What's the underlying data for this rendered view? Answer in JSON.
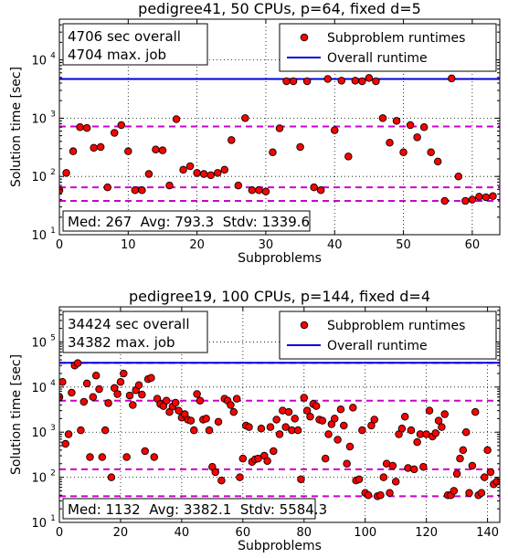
{
  "charts": [
    {
      "type": "scatter",
      "title": "pedigree41, 50 CPUs, p=64, fixed d=5",
      "xlabel": "Subproblems",
      "ylabel": "Solution time [sec]",
      "xlim": [
        0,
        64
      ],
      "ylim": [
        10,
        50000
      ],
      "yscale": "log",
      "xticks": [
        0,
        10,
        20,
        30,
        40,
        50,
        60
      ],
      "yticks": [
        10,
        100,
        1000,
        10000
      ],
      "yticklabels": [
        [
          "10",
          "1"
        ],
        [
          "10",
          "2"
        ],
        [
          "10",
          "3"
        ],
        [
          "10",
          "4"
        ]
      ],
      "grid": true,
      "legend_position": "top-right",
      "legend": {
        "series_label": "Subproblem runtimes",
        "line_label": "Overall runtime"
      },
      "info_box": {
        "line1": "4706 sec overall",
        "line2": "4704 max. job"
      },
      "stats_box": "Med: 267  Avg: 793.3  Stdv: 1339.6",
      "overall_runtime": 4706,
      "magenta_lines": [
        4704,
        720,
        65,
        38
      ],
      "series": [
        {
          "name": "Subproblem runtimes",
          "color": "#ff0000",
          "x": [
            0,
            1,
            2,
            3,
            4,
            5,
            6,
            7,
            8,
            9,
            10,
            11,
            12,
            13,
            14,
            15,
            16,
            17,
            18,
            19,
            20,
            21,
            22,
            23,
            24,
            25,
            26,
            27,
            28,
            29,
            30,
            31,
            32,
            33,
            34,
            35,
            36,
            37,
            38,
            39,
            40,
            41,
            42,
            43,
            44,
            45,
            46,
            47,
            48,
            49,
            50,
            51,
            52,
            53,
            54,
            55,
            56,
            57,
            58,
            59,
            60,
            61,
            62,
            63
          ],
          "y": [
            58,
            115,
            270,
            700,
            680,
            310,
            320,
            65,
            560,
            760,
            270,
            58,
            58,
            110,
            290,
            280,
            70,
            960,
            130,
            150,
            115,
            110,
            105,
            115,
            130,
            420,
            70,
            1000,
            58,
            58,
            55,
            260,
            670,
            4300,
            4300,
            320,
            4300,
            65,
            58,
            4700,
            620,
            4400,
            220,
            4400,
            4300,
            4900,
            4300,
            1000,
            380,
            900,
            260,
            760,
            470,
            700,
            260,
            180,
            38,
            4800,
            100,
            38,
            40,
            45,
            44,
            46
          ]
        }
      ]
    },
    {
      "type": "scatter",
      "title": "pedigree19, 100 CPUs, p=144, fixed d=4",
      "xlabel": "Subproblems",
      "ylabel": "Solution time [sec]",
      "xlim": [
        0,
        144
      ],
      "ylim": [
        10,
        600000
      ],
      "yscale": "log",
      "xticks": [
        0,
        20,
        40,
        60,
        80,
        100,
        120,
        140
      ],
      "yticks": [
        10,
        100,
        1000,
        10000,
        100000
      ],
      "yticklabels": [
        [
          "10",
          "1"
        ],
        [
          "10",
          "2"
        ],
        [
          "10",
          "3"
        ],
        [
          "10",
          "4"
        ],
        [
          "10",
          "5"
        ]
      ],
      "grid": true,
      "legend_position": "top-right",
      "legend": {
        "series_label": "Subproblem runtimes",
        "line_label": "Overall runtime"
      },
      "info_box": {
        "line1": "34424 sec overall",
        "line2": "34382 max. job"
      },
      "stats_box": "Med: 1132  Avg: 3382.1  Stdv: 5584.3",
      "overall_runtime": 34424,
      "magenta_lines": [
        34382,
        5000,
        150,
        38
      ],
      "series": [
        {
          "name": "Subproblem runtimes",
          "color": "#ff0000",
          "x": [
            0,
            1,
            2,
            3,
            4,
            5,
            6,
            7,
            8,
            9,
            10,
            11,
            12,
            13,
            14,
            15,
            16,
            17,
            18,
            19,
            20,
            21,
            22,
            23,
            24,
            25,
            26,
            27,
            28,
            29,
            30,
            31,
            32,
            33,
            34,
            35,
            36,
            37,
            38,
            39,
            40,
            41,
            42,
            43,
            44,
            45,
            46,
            47,
            48,
            49,
            50,
            51,
            52,
            53,
            54,
            55,
            56,
            57,
            58,
            59,
            60,
            61,
            62,
            63,
            64,
            65,
            66,
            67,
            68,
            69,
            70,
            71,
            72,
            73,
            74,
            75,
            76,
            77,
            78,
            79,
            80,
            81,
            82,
            83,
            84,
            85,
            86,
            87,
            88,
            89,
            90,
            91,
            92,
            93,
            94,
            95,
            96,
            97,
            98,
            99,
            100,
            101,
            102,
            103,
            104,
            105,
            106,
            107,
            108,
            109,
            110,
            111,
            112,
            113,
            114,
            115,
            116,
            117,
            118,
            119,
            120,
            121,
            122,
            123,
            124,
            125,
            126,
            127,
            128,
            129,
            130,
            131,
            132,
            133,
            134,
            135,
            136,
            137,
            138,
            139,
            140,
            141,
            142,
            143
          ],
          "y": [
            6000,
            13000,
            550,
            900,
            7500,
            30000,
            34000,
            1100,
            4700,
            12000,
            280,
            6000,
            18000,
            9000,
            280,
            1100,
            4400,
            100,
            9500,
            7000,
            13000,
            20000,
            280,
            6500,
            4000,
            8500,
            11000,
            6800,
            380,
            15000,
            16000,
            280,
            5500,
            4200,
            3800,
            5000,
            2800,
            3700,
            4500,
            3000,
            2100,
            2500,
            1900,
            1800,
            1100,
            7000,
            5000,
            1900,
            2000,
            1100,
            170,
            130,
            1700,
            85,
            5500,
            5000,
            4000,
            2800,
            5500,
            100,
            260,
            1400,
            1300,
            220,
            250,
            260,
            1200,
            300,
            230,
            1300,
            380,
            1900,
            900,
            3000,
            1300,
            2800,
            1100,
            2000,
            1100,
            90,
            5800,
            3000,
            2200,
            4200,
            3800,
            1900,
            1800,
            260,
            900,
            1500,
            2000,
            680,
            3200,
            1400,
            200,
            480,
            3500,
            85,
            90,
            1100,
            45,
            40,
            1400,
            1900,
            38,
            40,
            100,
            200,
            45,
            180,
            80,
            900,
            1200,
            2200,
            160,
            1100,
            150,
            600,
            900,
            170,
            900,
            3000,
            800,
            950,
            1800,
            1300,
            2500,
            40,
            40,
            50,
            120,
            260,
            400,
            1000,
            45,
            180,
            2800,
            40,
            45,
            100,
            400,
            130,
            70,
            80
          ]
        }
      ]
    }
  ]
}
